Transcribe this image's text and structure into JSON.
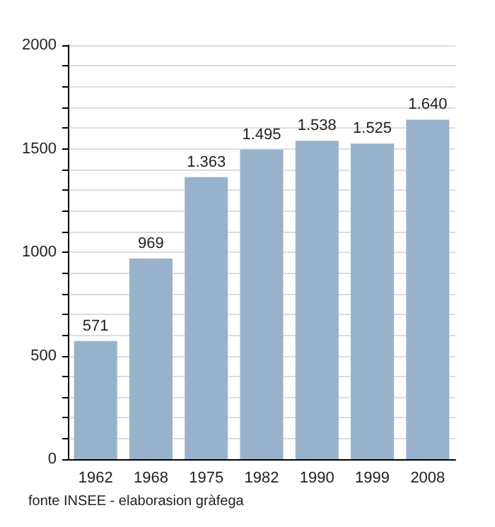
{
  "chart_data": {
    "type": "bar",
    "categories": [
      "1962",
      "1968",
      "1975",
      "1982",
      "1990",
      "1999",
      "2008"
    ],
    "values": [
      571,
      969,
      1363,
      1495,
      1538,
      1525,
      1640
    ],
    "value_labels": [
      "571",
      "969",
      "1.363",
      "1.495",
      "1.538",
      "1.525",
      "1.640"
    ],
    "color": "#98b2cc",
    "ylim": [
      0,
      2000
    ],
    "yticks": [
      0,
      {
        "value": 100,
        "label": null
      },
      {
        "value": 200,
        "label": null
      },
      {
        "value": 300,
        "label": null
      },
      {
        "value": 400,
        "label": null
      },
      500,
      {
        "value": 600,
        "label": null
      },
      {
        "value": 700,
        "label": null
      },
      {
        "value": 800,
        "label": null
      },
      {
        "value": 900,
        "label": null
      },
      1000,
      {
        "value": 1100,
        "label": null
      },
      {
        "value": 1200,
        "label": null
      },
      {
        "value": 1300,
        "label": null
      },
      {
        "value": 1400,
        "label": null
      },
      1500,
      {
        "value": 1600,
        "label": null
      },
      {
        "value": 1700,
        "label": null
      },
      {
        "value": 1800,
        "label": null
      },
      {
        "value": 1900,
        "label": null
      },
      2000
    ],
    "grid": "y",
    "annotations": [
      "fonte INSEE - elaborasion gràfega"
    ]
  }
}
